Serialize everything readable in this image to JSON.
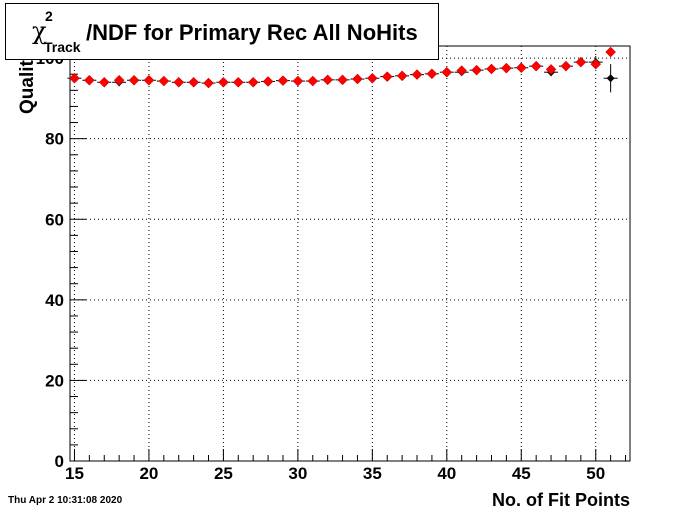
{
  "title": {
    "symbol": "χ",
    "superscript": "2",
    "subscript": "Track",
    "text": "/NDF for Primary Rec All NoHits"
  },
  "timestamp": "Thu Apr  2 10:31:08 2020",
  "chart_data": {
    "type": "scatter",
    "title": "χ²_Track/NDF for Primary Rec All NoHits",
    "xlabel": "No. of Fit Points",
    "ylabel": "Qualit",
    "xlim": [
      14.7,
      52.3
    ],
    "ylim": [
      0,
      103
    ],
    "x_ticks": [
      15,
      20,
      25,
      30,
      35,
      40,
      45,
      50
    ],
    "y_ticks": [
      0,
      20,
      40,
      60,
      80,
      100
    ],
    "grid": true,
    "series": [
      {
        "color": "#000000",
        "marker": "cross-with-errors",
        "points": [
          {
            "x": 15,
            "y": 95.0,
            "err": 0.5
          },
          {
            "x": 16,
            "y": 94.5,
            "err": 0.5
          },
          {
            "x": 17,
            "y": 94.0,
            "err": 0.5
          },
          {
            "x": 18,
            "y": 94.0,
            "err": 1.0
          },
          {
            "x": 19,
            "y": 94.5,
            "err": 0.5
          },
          {
            "x": 20,
            "y": 94.5,
            "err": 0.5
          },
          {
            "x": 21,
            "y": 94.3,
            "err": 0.5
          },
          {
            "x": 22,
            "y": 94.0,
            "err": 0.5
          },
          {
            "x": 23,
            "y": 94.0,
            "err": 0.5
          },
          {
            "x": 24,
            "y": 93.8,
            "err": 0.5
          },
          {
            "x": 25,
            "y": 94.0,
            "err": 0.5
          },
          {
            "x": 26,
            "y": 94.0,
            "err": 0.5
          },
          {
            "x": 27,
            "y": 94.0,
            "err": 0.5
          },
          {
            "x": 28,
            "y": 94.2,
            "err": 0.5
          },
          {
            "x": 29,
            "y": 94.4,
            "err": 0.5
          },
          {
            "x": 30,
            "y": 94.3,
            "err": 0.5
          },
          {
            "x": 31,
            "y": 94.3,
            "err": 0.5
          },
          {
            "x": 32,
            "y": 94.6,
            "err": 0.5
          },
          {
            "x": 33,
            "y": 94.6,
            "err": 0.5
          },
          {
            "x": 34,
            "y": 94.8,
            "err": 0.5
          },
          {
            "x": 35,
            "y": 95.0,
            "err": 0.5
          },
          {
            "x": 36,
            "y": 95.4,
            "err": 0.5
          },
          {
            "x": 37,
            "y": 95.6,
            "err": 0.5
          },
          {
            "x": 38,
            "y": 95.9,
            "err": 0.5
          },
          {
            "x": 39,
            "y": 96.1,
            "err": 0.5
          },
          {
            "x": 40,
            "y": 96.5,
            "err": 0.5
          },
          {
            "x": 41,
            "y": 96.5,
            "err": 0.7
          },
          {
            "x": 42,
            "y": 97.0,
            "err": 0.5
          },
          {
            "x": 43,
            "y": 97.3,
            "err": 0.5
          },
          {
            "x": 44,
            "y": 97.5,
            "err": 0.5
          },
          {
            "x": 45,
            "y": 97.6,
            "err": 0.6
          },
          {
            "x": 46,
            "y": 98.0,
            "err": 0.6
          },
          {
            "x": 47,
            "y": 96.5,
            "err": 1.0
          },
          {
            "x": 48,
            "y": 98.0,
            "err": 0.8
          },
          {
            "x": 49,
            "y": 99.0,
            "err": 0.8
          },
          {
            "x": 50,
            "y": 99.0,
            "err": 1.5
          },
          {
            "x": 51,
            "y": 95.0,
            "err": 3.5
          }
        ]
      },
      {
        "color": "#ff0000",
        "marker": "diamond",
        "points": [
          {
            "x": 15,
            "y": 95.0
          },
          {
            "x": 16,
            "y": 94.5
          },
          {
            "x": 17,
            "y": 94.0
          },
          {
            "x": 18,
            "y": 94.5
          },
          {
            "x": 19,
            "y": 94.5
          },
          {
            "x": 20,
            "y": 94.5
          },
          {
            "x": 21,
            "y": 94.3
          },
          {
            "x": 22,
            "y": 94.0
          },
          {
            "x": 23,
            "y": 94.0
          },
          {
            "x": 24,
            "y": 93.8
          },
          {
            "x": 25,
            "y": 94.0
          },
          {
            "x": 26,
            "y": 94.0
          },
          {
            "x": 27,
            "y": 94.0
          },
          {
            "x": 28,
            "y": 94.2
          },
          {
            "x": 29,
            "y": 94.4
          },
          {
            "x": 30,
            "y": 94.3
          },
          {
            "x": 31,
            "y": 94.3
          },
          {
            "x": 32,
            "y": 94.6
          },
          {
            "x": 33,
            "y": 94.6
          },
          {
            "x": 34,
            "y": 94.8
          },
          {
            "x": 35,
            "y": 95.0
          },
          {
            "x": 36,
            "y": 95.4
          },
          {
            "x": 37,
            "y": 95.6
          },
          {
            "x": 38,
            "y": 95.9
          },
          {
            "x": 39,
            "y": 96.1
          },
          {
            "x": 40,
            "y": 96.5
          },
          {
            "x": 41,
            "y": 96.9
          },
          {
            "x": 42,
            "y": 97.0
          },
          {
            "x": 43,
            "y": 97.3
          },
          {
            "x": 44,
            "y": 97.5
          },
          {
            "x": 45,
            "y": 97.6
          },
          {
            "x": 46,
            "y": 98.0
          },
          {
            "x": 47,
            "y": 97.2
          },
          {
            "x": 48,
            "y": 98.0
          },
          {
            "x": 49,
            "y": 99.0
          },
          {
            "x": 50,
            "y": 98.5
          },
          {
            "x": 51,
            "y": 101.5
          }
        ]
      }
    ]
  }
}
